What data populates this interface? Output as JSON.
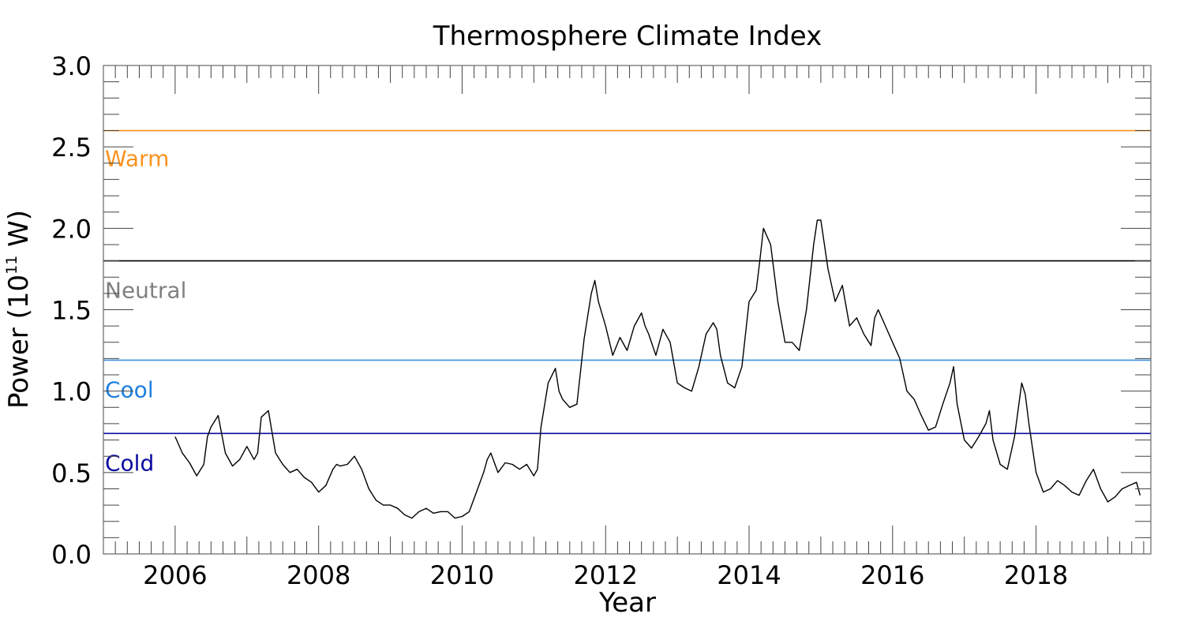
{
  "chart_data": {
    "type": "line",
    "title": "Thermosphere Climate Index",
    "xlabel": "Year",
    "ylabel_prefix": "Power (10",
    "ylabel_exponent": "11",
    "ylabel_suffix": " W)",
    "xlim": [
      2005.0,
      2019.6
    ],
    "ylim": [
      0.0,
      3.0
    ],
    "x_ticks": [
      2006,
      2008,
      2010,
      2012,
      2014,
      2016,
      2018
    ],
    "x_tick_labels": [
      "2006",
      "2008",
      "2010",
      "2012",
      "2014",
      "2016",
      "2018"
    ],
    "y_ticks": [
      0.0,
      0.5,
      1.0,
      1.5,
      2.0,
      2.5,
      3.0
    ],
    "y_tick_labels": [
      "0.0",
      "0.5",
      "1.0",
      "1.5",
      "2.0",
      "2.5",
      "3.0"
    ],
    "grid": false,
    "thresholds": [
      {
        "label": "Warm",
        "value": 2.6,
        "color": "#f7931e",
        "label_color": "#f7931e",
        "label_y": 2.43
      },
      {
        "label": "Neutral",
        "value": 1.8,
        "color": "#000000",
        "label_color": "#808080",
        "label_y": 1.62
      },
      {
        "label": "Cool",
        "value": 1.19,
        "color": "#3b8fde",
        "label_color": "#1e7fde",
        "label_y": 1.01
      },
      {
        "label": "Cold",
        "value": 0.74,
        "color": "#0a0aa0",
        "label_color": "#0a0aa0",
        "label_y": 0.56
      }
    ],
    "series": [
      {
        "color": "#000000",
        "x": [
          2006.0,
          2006.1,
          2006.2,
          2006.3,
          2006.4,
          2006.45,
          2006.5,
          2006.6,
          2006.7,
          2006.8,
          2006.9,
          2007.0,
          2007.05,
          2007.1,
          2007.15,
          2007.2,
          2007.3,
          2007.4,
          2007.5,
          2007.6,
          2007.7,
          2007.8,
          2007.9,
          2008.0,
          2008.1,
          2008.2,
          2008.25,
          2008.3,
          2008.4,
          2008.5,
          2008.6,
          2008.7,
          2008.8,
          2008.9,
          2009.0,
          2009.1,
          2009.2,
          2009.3,
          2009.4,
          2009.5,
          2009.6,
          2009.7,
          2009.8,
          2009.9,
          2010.0,
          2010.1,
          2010.2,
          2010.3,
          2010.35,
          2010.4,
          2010.5,
          2010.6,
          2010.7,
          2010.8,
          2010.9,
          2011.0,
          2011.05,
          2011.1,
          2011.2,
          2011.3,
          2011.35,
          2011.4,
          2011.5,
          2011.6,
          2011.7,
          2011.8,
          2011.85,
          2011.9,
          2012.0,
          2012.1,
          2012.2,
          2012.3,
          2012.4,
          2012.5,
          2012.55,
          2012.6,
          2012.7,
          2012.8,
          2012.9,
          2013.0,
          2013.1,
          2013.2,
          2013.3,
          2013.4,
          2013.5,
          2013.55,
          2013.6,
          2013.7,
          2013.8,
          2013.9,
          2014.0,
          2014.1,
          2014.15,
          2014.2,
          2014.3,
          2014.4,
          2014.5,
          2014.6,
          2014.7,
          2014.8,
          2014.9,
          2014.95,
          2015.0,
          2015.1,
          2015.2,
          2015.3,
          2015.4,
          2015.5,
          2015.6,
          2015.7,
          2015.75,
          2015.8,
          2015.9,
          2016.0,
          2016.1,
          2016.2,
          2016.3,
          2016.4,
          2016.5,
          2016.6,
          2016.7,
          2016.8,
          2016.85,
          2016.9,
          2017.0,
          2017.1,
          2017.2,
          2017.3,
          2017.35,
          2017.4,
          2017.5,
          2017.6,
          2017.7,
          2017.8,
          2017.85,
          2017.9,
          2018.0,
          2018.1,
          2018.2,
          2018.3,
          2018.4,
          2018.5,
          2018.6,
          2018.7,
          2018.8,
          2018.9,
          2019.0,
          2019.1,
          2019.2,
          2019.3,
          2019.4,
          2019.45
        ],
        "y": [
          0.72,
          0.62,
          0.56,
          0.48,
          0.55,
          0.72,
          0.78,
          0.85,
          0.62,
          0.54,
          0.58,
          0.66,
          0.62,
          0.58,
          0.62,
          0.84,
          0.88,
          0.62,
          0.55,
          0.5,
          0.52,
          0.47,
          0.44,
          0.38,
          0.42,
          0.52,
          0.55,
          0.54,
          0.55,
          0.6,
          0.52,
          0.4,
          0.33,
          0.3,
          0.3,
          0.28,
          0.24,
          0.22,
          0.26,
          0.28,
          0.25,
          0.26,
          0.26,
          0.22,
          0.23,
          0.26,
          0.38,
          0.5,
          0.58,
          0.62,
          0.5,
          0.56,
          0.55,
          0.52,
          0.55,
          0.48,
          0.52,
          0.78,
          1.05,
          1.14,
          1.0,
          0.95,
          0.9,
          0.92,
          1.32,
          1.6,
          1.68,
          1.55,
          1.4,
          1.22,
          1.33,
          1.25,
          1.4,
          1.48,
          1.4,
          1.35,
          1.22,
          1.38,
          1.3,
          1.05,
          1.02,
          1.0,
          1.15,
          1.35,
          1.42,
          1.38,
          1.22,
          1.05,
          1.02,
          1.15,
          1.55,
          1.62,
          1.8,
          2.0,
          1.9,
          1.55,
          1.3,
          1.3,
          1.25,
          1.5,
          1.9,
          2.05,
          2.05,
          1.75,
          1.55,
          1.65,
          1.4,
          1.45,
          1.35,
          1.28,
          1.45,
          1.5,
          1.4,
          1.3,
          1.2,
          1.0,
          0.95,
          0.85,
          0.76,
          0.78,
          0.92,
          1.05,
          1.15,
          0.92,
          0.7,
          0.65,
          0.72,
          0.8,
          0.88,
          0.7,
          0.55,
          0.52,
          0.72,
          1.05,
          0.98,
          0.8,
          0.5,
          0.38,
          0.4,
          0.45,
          0.42,
          0.38,
          0.36,
          0.45,
          0.52,
          0.4,
          0.32,
          0.35,
          0.4,
          0.42,
          0.44,
          0.36
        ]
      }
    ]
  }
}
